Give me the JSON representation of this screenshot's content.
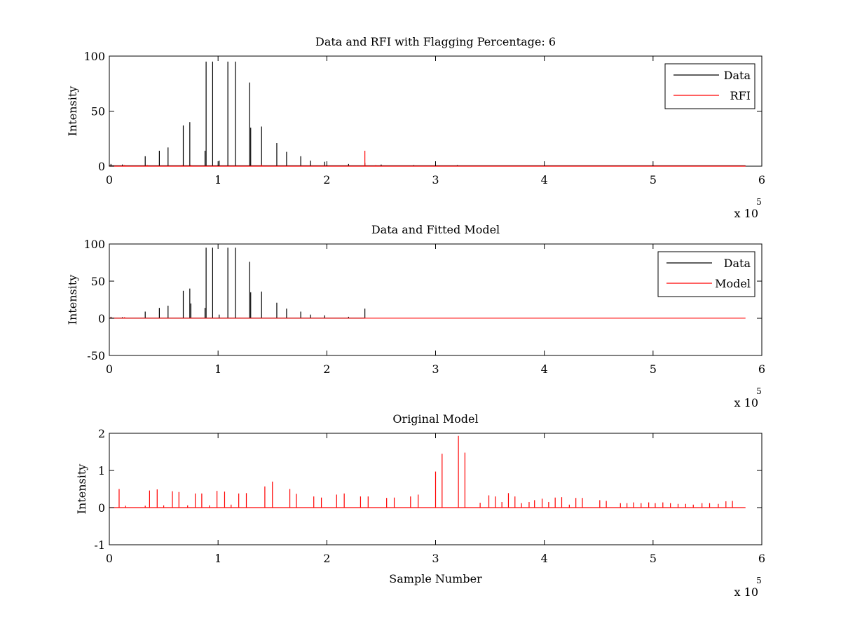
{
  "figure": {
    "background": "#ffffff",
    "axes_color": "#000000"
  },
  "chart_data": [
    {
      "type": "line",
      "title": "Data and RFI with Flagging Percentage: 6",
      "xlabel": "",
      "ylabel": "Intensity",
      "xlim": [
        0,
        600000
      ],
      "ylim": [
        0,
        100
      ],
      "x_ticks": [
        0,
        1,
        2,
        3,
        4,
        5,
        6
      ],
      "x_tick_scale": 100000,
      "x_exponent_base": "x 10",
      "x_exponent": "5",
      "y_ticks": [
        0,
        50,
        100
      ],
      "grid": false,
      "legend": {
        "position": "top-right",
        "entries": [
          "Data",
          "RFI"
        ]
      },
      "series": [
        {
          "name": "Data",
          "color": "#000000",
          "x_end": 585000,
          "baseline": 0.3,
          "spikes": [
            [
              1500,
              2
            ],
            [
              12000,
              1.5
            ],
            [
              33000,
              9
            ],
            [
              46000,
              14
            ],
            [
              54000,
              17
            ],
            [
              68000,
              37
            ],
            [
              74000,
              40
            ],
            [
              88000,
              14
            ],
            [
              89000,
              95
            ],
            [
              95000,
              95
            ],
            [
              101000,
              5
            ],
            [
              109000,
              95
            ],
            [
              116000,
              95
            ],
            [
              129000,
              76
            ],
            [
              130000,
              35
            ],
            [
              140000,
              36
            ],
            [
              154000,
              21
            ],
            [
              163000,
              13
            ],
            [
              176000,
              9
            ],
            [
              185000,
              5
            ],
            [
              198000,
              4
            ],
            [
              220000,
              2
            ],
            [
              235000,
              3
            ],
            [
              250000,
              1.5
            ],
            [
              280000,
              1
            ],
            [
              320000,
              1
            ]
          ]
        },
        {
          "name": "RFI",
          "color": "#ff0000",
          "x_end": 585000,
          "baseline": 0,
          "spikes": [
            [
              0,
              1
            ],
            [
              14000,
              1
            ],
            [
              35000,
              1
            ],
            [
              67000,
              1
            ],
            [
              75000,
              1
            ],
            [
              140000,
              1.5
            ],
            [
              200000,
              1
            ],
            [
              235000,
              14
            ],
            [
              245000,
              1
            ]
          ]
        }
      ]
    },
    {
      "type": "line",
      "title": "Data and Fitted Model",
      "xlabel": "",
      "ylabel": "Intensity",
      "xlim": [
        0,
        600000
      ],
      "ylim": [
        -50,
        100
      ],
      "x_ticks": [
        0,
        1,
        2,
        3,
        4,
        5,
        6
      ],
      "x_tick_scale": 100000,
      "x_exponent_base": "x 10",
      "x_exponent": "5",
      "y_ticks": [
        -50,
        0,
        50,
        100
      ],
      "grid": false,
      "legend": {
        "position": "top-right",
        "entries": [
          "Data",
          "Model"
        ]
      },
      "series": [
        {
          "name": "Data",
          "color": "#000000",
          "x_end": 235000,
          "baseline": 0.3,
          "spikes": [
            [
              1500,
              2
            ],
            [
              12000,
              1.5
            ],
            [
              33000,
              9
            ],
            [
              46000,
              14
            ],
            [
              54000,
              17
            ],
            [
              68000,
              37
            ],
            [
              74000,
              40
            ],
            [
              75000,
              20
            ],
            [
              88000,
              14
            ],
            [
              89000,
              95
            ],
            [
              95000,
              95
            ],
            [
              101000,
              5
            ],
            [
              109000,
              95
            ],
            [
              116000,
              95
            ],
            [
              129000,
              76
            ],
            [
              130000,
              35
            ],
            [
              140000,
              36
            ],
            [
              154000,
              21
            ],
            [
              163000,
              13
            ],
            [
              176000,
              9
            ],
            [
              185000,
              5
            ],
            [
              198000,
              4
            ],
            [
              220000,
              2
            ],
            [
              235000,
              13
            ]
          ]
        },
        {
          "name": "Model",
          "color": "#ff0000",
          "x_end": 585000,
          "baseline": 0.2,
          "spikes": [
            [
              1000,
              1
            ],
            [
              14000,
              1.5
            ],
            [
              75000,
              1
            ],
            [
              120000,
              1
            ],
            [
              235000,
              1
            ]
          ]
        }
      ]
    },
    {
      "type": "line",
      "title": "Original Model",
      "xlabel": "Sample Number",
      "ylabel": "Intensity",
      "xlim": [
        0,
        600000
      ],
      "ylim": [
        -1,
        2
      ],
      "x_ticks": [
        0,
        1,
        2,
        3,
        4,
        5,
        6
      ],
      "x_tick_scale": 100000,
      "x_exponent_base": "x 10",
      "x_exponent": "5",
      "y_ticks": [
        -1,
        0,
        1,
        2
      ],
      "grid": false,
      "legend": null,
      "series": [
        {
          "name": "",
          "color": "#ff0000",
          "x_end": 585000,
          "baseline": 0,
          "spikes": [
            [
              9000,
              0.5
            ],
            [
              15000,
              0.05
            ],
            [
              33000,
              0.05
            ],
            [
              37000,
              0.46
            ],
            [
              44000,
              0.49
            ],
            [
              50000,
              0.06
            ],
            [
              58000,
              0.44
            ],
            [
              64000,
              0.42
            ],
            [
              72000,
              0.06
            ],
            [
              79000,
              0.38
            ],
            [
              85000,
              0.38
            ],
            [
              92000,
              0.06
            ],
            [
              99000,
              0.45
            ],
            [
              106000,
              0.43
            ],
            [
              112000,
              0.08
            ],
            [
              119000,
              0.38
            ],
            [
              126000,
              0.39
            ],
            [
              143000,
              0.57
            ],
            [
              150000,
              0.7
            ],
            [
              166000,
              0.5
            ],
            [
              172000,
              0.37
            ],
            [
              188000,
              0.3
            ],
            [
              195000,
              0.27
            ],
            [
              209000,
              0.35
            ],
            [
              216000,
              0.38
            ],
            [
              231000,
              0.3
            ],
            [
              238000,
              0.3
            ],
            [
              255000,
              0.26
            ],
            [
              262000,
              0.27
            ],
            [
              277000,
              0.3
            ],
            [
              284000,
              0.35
            ],
            [
              300000,
              0.97
            ],
            [
              306000,
              1.45
            ],
            [
              321000,
              1.93
            ],
            [
              327000,
              1.48
            ],
            [
              341000,
              0.13
            ],
            [
              349000,
              0.33
            ],
            [
              355000,
              0.3
            ],
            [
              361000,
              0.15
            ],
            [
              367000,
              0.39
            ],
            [
              373000,
              0.3
            ],
            [
              379000,
              0.12
            ],
            [
              386000,
              0.15
            ],
            [
              391000,
              0.2
            ],
            [
              398000,
              0.24
            ],
            [
              404000,
              0.15
            ],
            [
              410000,
              0.27
            ],
            [
              416000,
              0.28
            ],
            [
              423000,
              0.08
            ],
            [
              429000,
              0.26
            ],
            [
              435000,
              0.26
            ],
            [
              451000,
              0.2
            ],
            [
              457000,
              0.18
            ],
            [
              470000,
              0.12
            ],
            [
              476000,
              0.12
            ],
            [
              482000,
              0.14
            ],
            [
              489000,
              0.12
            ],
            [
              496000,
              0.14
            ],
            [
              502000,
              0.12
            ],
            [
              509000,
              0.14
            ],
            [
              516000,
              0.12
            ],
            [
              523000,
              0.1
            ],
            [
              530000,
              0.1
            ],
            [
              537000,
              0.08
            ],
            [
              545000,
              0.12
            ],
            [
              552000,
              0.12
            ],
            [
              560000,
              0.1
            ],
            [
              567000,
              0.17
            ],
            [
              573000,
              0.18
            ]
          ]
        }
      ]
    }
  ]
}
